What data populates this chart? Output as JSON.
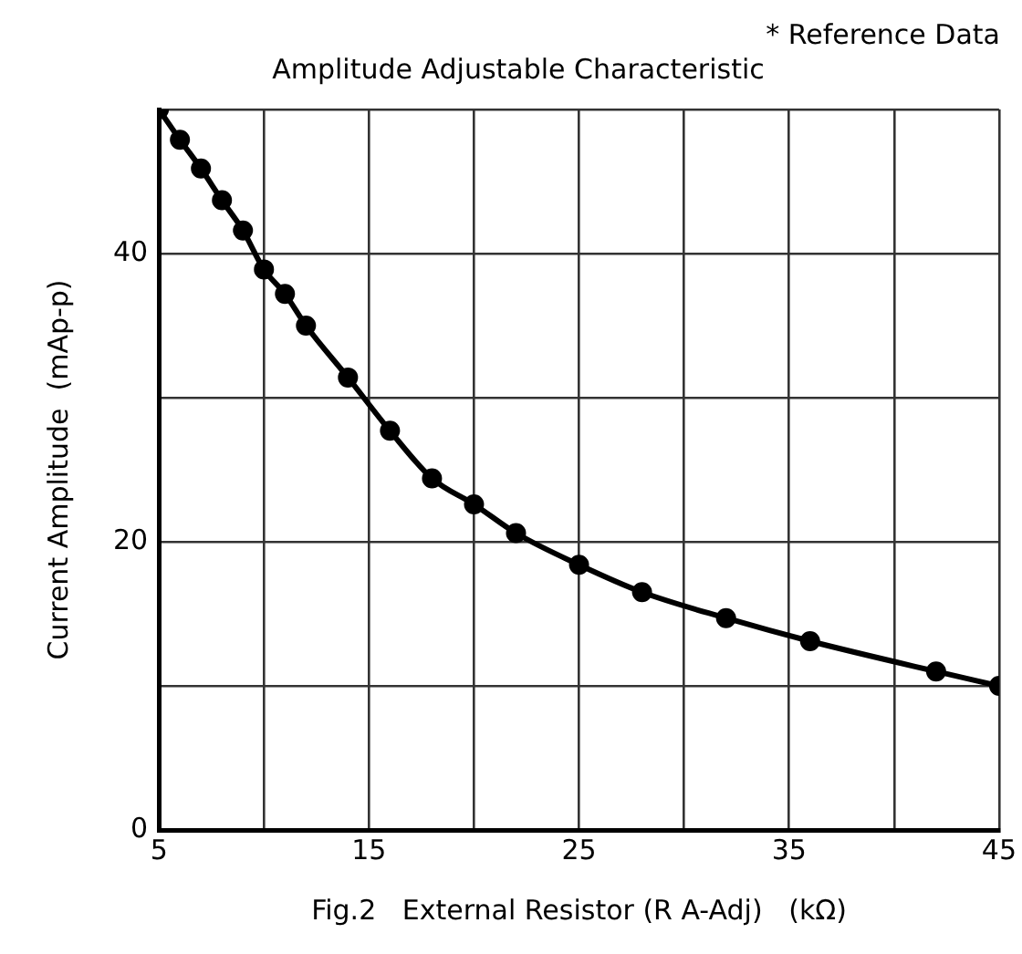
{
  "chart_data": {
    "type": "line",
    "title": "Amplitude Adjustable Characteristic",
    "xlabel": "Fig.2   External Resistor (R A-Adj)   (kΩ)",
    "ylabel": "Current Amplitude  (mAp-p)",
    "annotations": [
      "* Reference Data"
    ],
    "x": [
      5,
      6,
      7,
      8,
      9,
      10,
      11,
      12,
      14,
      16,
      18,
      20,
      22,
      25,
      28,
      32,
      36,
      42,
      45
    ],
    "series": [
      {
        "color": "#000000",
        "values": [
          50,
          47.9,
          45.9,
          43.7,
          41.6,
          38.9,
          37.2,
          35,
          31.4,
          27.7,
          24.4,
          22.6,
          20.6,
          18.4,
          16.5,
          14.7,
          13.1,
          11,
          10
        ]
      }
    ],
    "xlim": [
      5,
      45
    ],
    "xticks": [
      5,
      {
        "value": 10,
        "label": null
      },
      15,
      {
        "value": 20,
        "label": null
      },
      25,
      {
        "value": 30,
        "label": null
      },
      35,
      {
        "value": 40,
        "label": null
      },
      45
    ],
    "ylim": [
      0,
      50
    ],
    "yticks": [
      0,
      {
        "value": 10,
        "label": null
      },
      20,
      {
        "value": 30,
        "label": null
      },
      40,
      {
        "value": 50,
        "label": null
      }
    ],
    "grid": true,
    "legend": false,
    "marker": "circle",
    "line_style": "solid"
  }
}
